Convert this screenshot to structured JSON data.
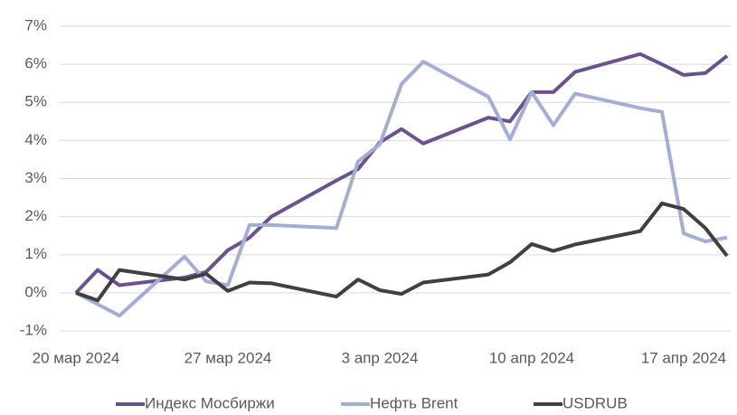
{
  "chart_data": {
    "type": "line",
    "x": [
      "2024-03-20",
      "2024-03-21",
      "2024-03-22",
      "2024-03-25",
      "2024-03-26",
      "2024-03-27",
      "2024-03-28",
      "2024-03-29",
      "2024-04-01",
      "2024-04-02",
      "2024-04-03",
      "2024-04-04",
      "2024-04-05",
      "2024-04-08",
      "2024-04-09",
      "2024-04-10",
      "2024-04-11",
      "2024-04-12",
      "2024-04-15",
      "2024-04-16",
      "2024-04-17",
      "2024-04-18",
      "2024-04-19"
    ],
    "series": [
      {
        "name": "Индекс Мосбиржи",
        "color": "#6a5291",
        "values": [
          0,
          0.6,
          0.2,
          0.4,
          0.55,
          1.12,
          1.45,
          2.0,
          2.95,
          3.25,
          3.95,
          4.3,
          3.92,
          4.6,
          4.5,
          5.27,
          5.27,
          5.8,
          6.27,
          6.0,
          5.72,
          5.77,
          6.22
        ]
      },
      {
        "name": "Нефть Brent",
        "color": "#a3aed6",
        "values": [
          0,
          -0.3,
          -0.6,
          0.95,
          0.3,
          0.2,
          1.78,
          1.78,
          1.7,
          3.45,
          3.9,
          5.48,
          6.07,
          5.15,
          4.03,
          5.27,
          4.4,
          5.23,
          4.85,
          4.75,
          1.56,
          1.35,
          1.45
        ]
      },
      {
        "name": "USDRUB",
        "color": "#404040",
        "values": [
          0,
          -0.2,
          0.6,
          0.35,
          0.5,
          0.05,
          0.27,
          0.25,
          -0.1,
          0.35,
          0.07,
          -0.03,
          0.27,
          0.48,
          0.8,
          1.28,
          1.1,
          1.27,
          1.62,
          2.35,
          2.2,
          1.7,
          0.97
        ]
      }
    ],
    "xlim": [
      "2024-03-20",
      "2024-04-19"
    ],
    "xticks": [
      {
        "value": "2024-03-20",
        "label": "20 мар 2024"
      },
      {
        "value": "2024-03-27",
        "label": "27 мар 2024"
      },
      {
        "value": "2024-04-03",
        "label": "3 апр 2024"
      },
      {
        "value": "2024-04-10",
        "label": "10 апр 2024"
      },
      {
        "value": "2024-04-17",
        "label": "17 апр 2024"
      }
    ],
    "ylim": [
      -1,
      7
    ],
    "yticks": [
      {
        "value": -1,
        "label": "-1%"
      },
      {
        "value": 0,
        "label": "0%"
      },
      {
        "value": 1,
        "label": "1%"
      },
      {
        "value": 2,
        "label": "2%"
      },
      {
        "value": 3,
        "label": "3%"
      },
      {
        "value": 4,
        "label": "4%"
      },
      {
        "value": 5,
        "label": "5%"
      },
      {
        "value": 6,
        "label": "6%"
      },
      {
        "value": 7,
        "label": "7%"
      }
    ],
    "grid": true,
    "legend": "bottom"
  }
}
